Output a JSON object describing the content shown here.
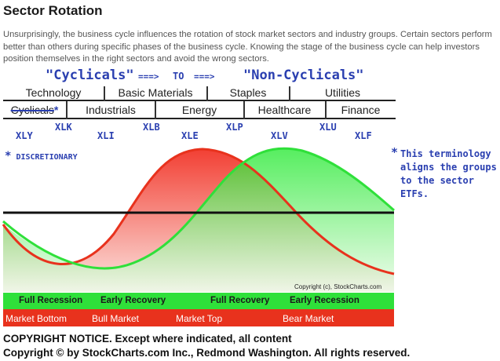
{
  "title": "Sector Rotation",
  "intro": "Unsurprisingly, the business cycle influences the rotation of stock market sectors and industry groups. Certain sectors perform better than others during specific phases of the business cycle. Knowing the stage of the business cycle can help investors position themselves in the right sectors and avoid the wrong sectors.",
  "header": {
    "cyclicals": "\"Cyclicals\"",
    "arrow1": "===>",
    "to": "TO",
    "arrow2": "===>",
    "non_cyclicals": "\"Non-Cyclicals\""
  },
  "sectors_row1": [
    "Technology",
    "Basic Materials",
    "Staples",
    "Utilities"
  ],
  "sectors_row2": [
    "Cyclicals",
    "Industrials",
    "Energy",
    "Healthcare",
    "Finance"
  ],
  "star": "*",
  "etfs": [
    "XLY",
    "XLK",
    "XLI",
    "XLB",
    "XLE",
    "XLP",
    "XLV",
    "XLU",
    "XLF"
  ],
  "discretionary_note": "DISCRETIONARY",
  "side_note": "This terminology aligns the groups to the sector ETFs.",
  "chart_copyright": "Copyright (c), StockCharts.com",
  "phases": [
    "Full Recession",
    "Early Recovery",
    "Full Recovery",
    "Early Recession"
  ],
  "markets": [
    "Market Bottom",
    "Bull Market",
    "Market Top",
    "Bear Market"
  ],
  "notice_line1": "COPYRIGHT NOTICE. Except where indicated, all content",
  "notice_line2": "Copyright © by StockCharts.com Inc., Redmond Washington. All rights reserved.",
  "colors": {
    "accent_blue": "#2a3fb0",
    "red_curve": "#e8321d",
    "green_curve": "#2fe03a"
  }
}
